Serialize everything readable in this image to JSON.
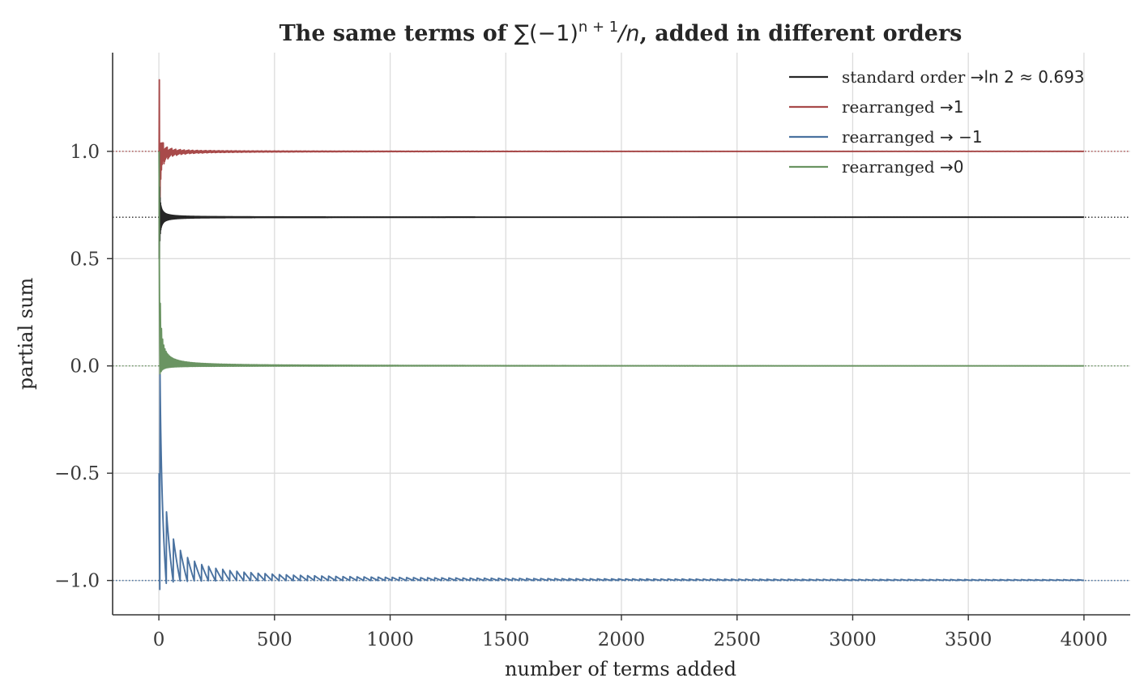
{
  "chart_data": {
    "type": "line",
    "title": "The same terms of ∑(−1)ⁿ⁺¹/n, added in different orders",
    "title_parts": {
      "lead": "The same terms of ",
      "math_base": "∑(−1)",
      "math_sup": "n + 1",
      "math_tail": "/n",
      "trail": ", added in different orders"
    },
    "xlabel": "number of terms added",
    "ylabel": "partial sum",
    "xlim": [
      -200,
      4200
    ],
    "ylim": [
      -1.16,
      1.46
    ],
    "xticks": [
      0,
      500,
      1000,
      1500,
      2000,
      2500,
      3000,
      3500,
      4000
    ],
    "xtick_labels": [
      "0",
      "500",
      "1000",
      "1500",
      "2000",
      "2500",
      "3000",
      "3500",
      "4000"
    ],
    "yticks": [
      1.0,
      0.5,
      0.0,
      -0.5,
      -1.0
    ],
    "ytick_labels": [
      "1.0",
      "0.5",
      "0.0",
      "−0.5",
      "−1.0"
    ],
    "grid": true,
    "legend_position": "top-right",
    "n_terms": 4000,
    "series": [
      {
        "name": "standard order →ln 2 ≈ 0.693",
        "name_prefix": "standard order ",
        "name_math": "→ln 2 ≈ 0.693",
        "color": "#262626",
        "target": 0.6931,
        "order": "alternating"
      },
      {
        "name": "rearranged →1",
        "name_prefix": "rearranged ",
        "name_math": "→1",
        "color": "#a84a4a",
        "target": 1.0,
        "order": "greedy"
      },
      {
        "name": "rearranged → −1",
        "name_prefix": "rearranged ",
        "name_math": "→ −1",
        "color": "#4a72a0",
        "target": -1.0,
        "order": "greedy"
      },
      {
        "name": "rearranged →0",
        "name_prefix": "rearranged ",
        "name_math": "→0",
        "color": "#6a9462",
        "target": 0.0,
        "order": "greedy"
      }
    ],
    "reference_lines": [
      {
        "y": 1.0,
        "color": "#a84a4a"
      },
      {
        "y": 0.6931,
        "color": "#262626"
      },
      {
        "y": 0.0,
        "color": "#6a9462"
      },
      {
        "y": -1.0,
        "color": "#4a72a0"
      }
    ]
  }
}
